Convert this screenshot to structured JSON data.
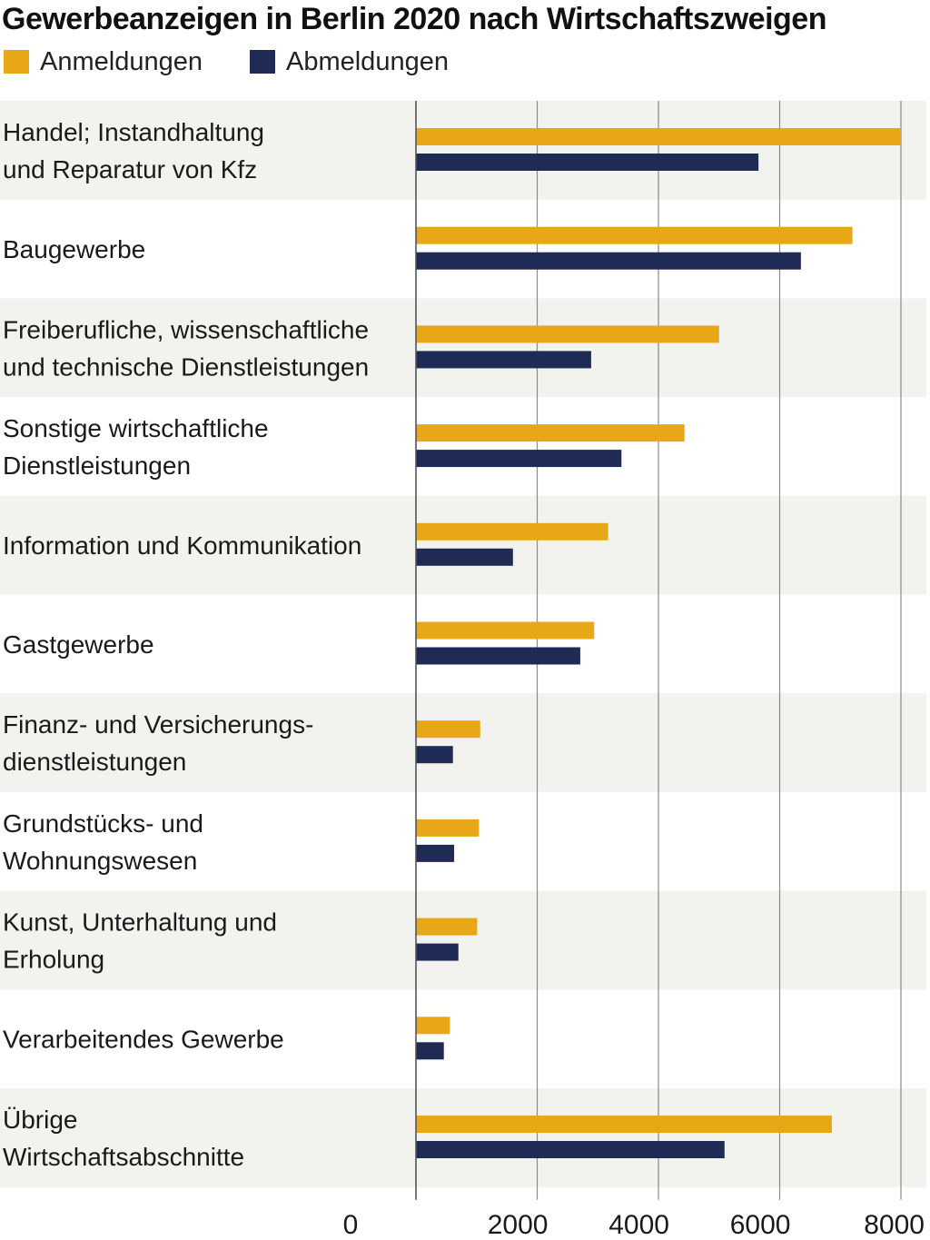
{
  "colors": {
    "anmeldungen": "#e8a717",
    "abmeldungen": "#1f2a55",
    "band_shaded": "#f2f2ef",
    "band_plain": "#ffffff",
    "gridline": "#8a8a8a",
    "axis": "#555555"
  },
  "chart_data": {
    "type": "bar",
    "orientation": "horizontal",
    "title": "Gewerbeanzeigen in Berlin 2020 nach Wirtschaftszweigen",
    "xlabel": "",
    "ylabel": "",
    "xlim": [
      0,
      8000
    ],
    "x_ticks": [
      0,
      2000,
      4000,
      6000,
      8000
    ],
    "x_tick_labels": [
      "0",
      "2000",
      "4000",
      "6000",
      "8000"
    ],
    "grid": true,
    "legend": "top-left",
    "categories": [
      [
        "Handel; Instandhaltung",
        "und Reparatur von Kfz"
      ],
      [
        "Baugewerbe"
      ],
      [
        "Freiberufliche, wissenschaftliche",
        "und technische Dienstleistungen"
      ],
      [
        "Sonstige wirtschaftliche",
        "Dienstleistungen"
      ],
      [
        "Information und Kommunikation"
      ],
      [
        "Gastgewerbe"
      ],
      [
        "Finanz- und Versicherungs-",
        "dienstleistungen"
      ],
      [
        "Grundstücks- und",
        "Wohnungswesen"
      ],
      [
        "Kunst, Unterhaltung und",
        "Erholung"
      ],
      [
        "Verarbeitendes Gewerbe"
      ],
      [
        "Übrige",
        "Wirtschaftsabschnitte"
      ]
    ],
    "series": [
      {
        "name": "Anmeldungen",
        "values": [
          8000,
          7200,
          5000,
          4430,
          3170,
          2940,
          1060,
          1040,
          1010,
          560,
          6860
        ]
      },
      {
        "name": "Abmeldungen",
        "values": [
          5650,
          6350,
          2890,
          3390,
          1600,
          2710,
          610,
          630,
          700,
          460,
          5090
        ]
      }
    ]
  }
}
